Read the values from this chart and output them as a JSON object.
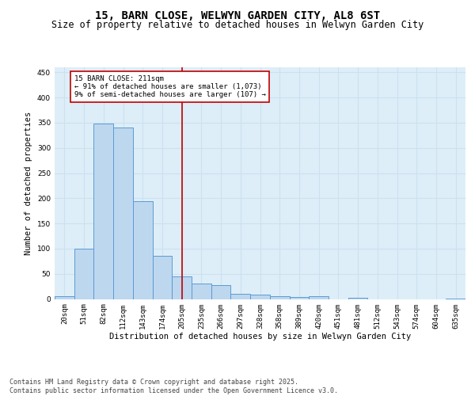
{
  "title": "15, BARN CLOSE, WELWYN GARDEN CITY, AL8 6ST",
  "subtitle": "Size of property relative to detached houses in Welwyn Garden City",
  "xlabel": "Distribution of detached houses by size in Welwyn Garden City",
  "ylabel": "Number of detached properties",
  "categories": [
    "20sqm",
    "51sqm",
    "82sqm",
    "112sqm",
    "143sqm",
    "174sqm",
    "205sqm",
    "235sqm",
    "266sqm",
    "297sqm",
    "328sqm",
    "358sqm",
    "389sqm",
    "420sqm",
    "451sqm",
    "481sqm",
    "512sqm",
    "543sqm",
    "574sqm",
    "604sqm",
    "635sqm"
  ],
  "values": [
    5,
    100,
    348,
    340,
    195,
    85,
    45,
    30,
    28,
    10,
    8,
    5,
    4,
    5,
    0,
    2,
    0,
    0,
    0,
    0,
    1
  ],
  "bar_color": "#bdd7ee",
  "bar_edge_color": "#5b9bd5",
  "reference_line_x": 6,
  "reference_line_color": "#c00000",
  "annotation_text": "15 BARN CLOSE: 211sqm\n← 91% of detached houses are smaller (1,073)\n9% of semi-detached houses are larger (107) →",
  "annotation_box_color": "#ffffff",
  "annotation_box_edge_color": "#c00000",
  "ylim": [
    0,
    460
  ],
  "yticks": [
    0,
    50,
    100,
    150,
    200,
    250,
    300,
    350,
    400,
    450
  ],
  "grid_color": "#cce0f0",
  "background_color": "#ddeef8",
  "footer_text": "Contains HM Land Registry data © Crown copyright and database right 2025.\nContains public sector information licensed under the Open Government Licence v3.0.",
  "title_fontsize": 10,
  "subtitle_fontsize": 8.5,
  "axis_label_fontsize": 7.5,
  "tick_fontsize": 6.5,
  "footer_fontsize": 6.0
}
